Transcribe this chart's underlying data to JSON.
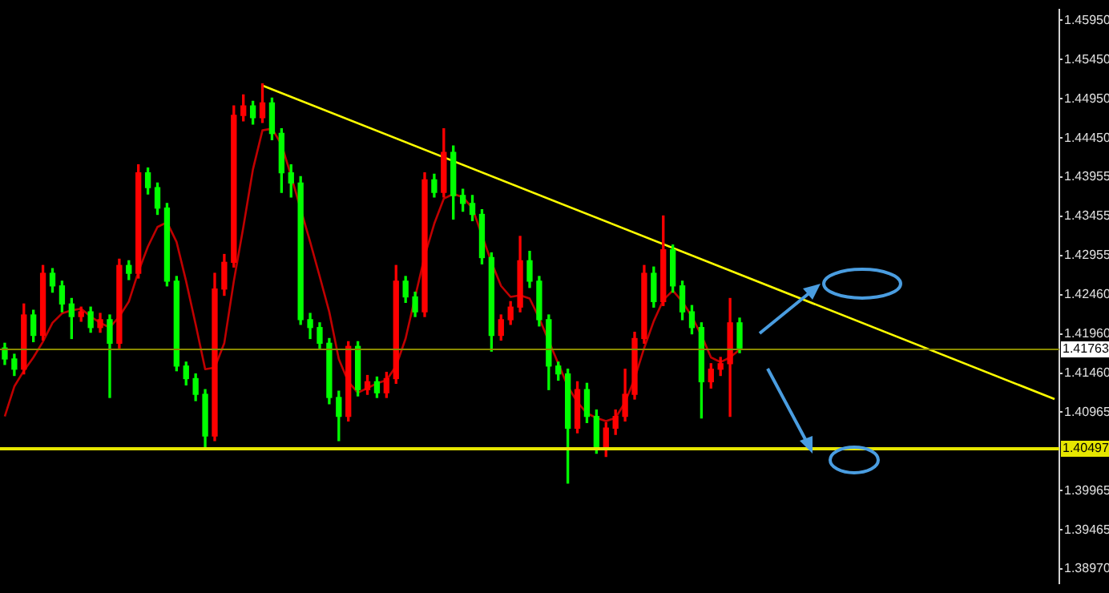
{
  "chart_data": {
    "type": "candlestick",
    "tick_labels": "y",
    "grid": false,
    "legend": false,
    "ylim": [
      1.3878,
      1.4609
    ],
    "yticks": [
      {
        "value": 1.4595,
        "label": "1.45950"
      },
      {
        "value": 1.4545,
        "label": "1.45450"
      },
      {
        "value": 1.4495,
        "label": "1.44950"
      },
      {
        "value": 1.4445,
        "label": "1.44450"
      },
      {
        "value": 1.43955,
        "label": "1.43955"
      },
      {
        "value": 1.43455,
        "label": "1.43455"
      },
      {
        "value": 1.42955,
        "label": "1.42955"
      },
      {
        "value": 1.4246,
        "label": "1.42460"
      },
      {
        "value": 1.4196,
        "label": "1.41960"
      },
      {
        "value": 1.4146,
        "label": "1.41460"
      },
      {
        "value": 1.40965,
        "label": "1.40965"
      },
      {
        "value": 1.39965,
        "label": "1.39965"
      },
      {
        "value": 1.39465,
        "label": "1.39465"
      },
      {
        "value": 1.3897,
        "label": "1.38970"
      }
    ],
    "categories": [
      null,
      null,
      null,
      null,
      null,
      null,
      null,
      null,
      null,
      null,
      null,
      null,
      null,
      null,
      null,
      null,
      null,
      null,
      null,
      null,
      null,
      null,
      null,
      null,
      null,
      null,
      null,
      null,
      null,
      null,
      null,
      null,
      null,
      null,
      null,
      null,
      null,
      null,
      null,
      null,
      null,
      null,
      null,
      null,
      null,
      null,
      null,
      null,
      null,
      null,
      null,
      null,
      null,
      null,
      null,
      null,
      null,
      null,
      null,
      null,
      null,
      null,
      null,
      null,
      null,
      null,
      null,
      null,
      null,
      null,
      null,
      null,
      null,
      null,
      null,
      null,
      null,
      null,
      null,
      null,
      null,
      null,
      null,
      null,
      null,
      null,
      null,
      null,
      null,
      null,
      null,
      null,
      null,
      null,
      null,
      null,
      null,
      null,
      null,
      null,
      null,
      null,
      null,
      null,
      null,
      null,
      null,
      null,
      null,
      null,
      null
    ],
    "ohlc": [
      [
        1.4178,
        1.4184,
        1.4157,
        1.4164
      ],
      [
        1.4164,
        1.417,
        1.4143,
        1.4151
      ],
      [
        1.4151,
        1.4234,
        1.4145,
        1.422
      ],
      [
        1.422,
        1.4226,
        1.4186,
        1.4194
      ],
      [
        1.4194,
        1.4283,
        1.4188,
        1.4273
      ],
      [
        1.4273,
        1.4279,
        1.4249,
        1.4257
      ],
      [
        1.4257,
        1.4263,
        1.4224,
        1.4234
      ],
      [
        1.4234,
        1.4241,
        1.419,
        1.4218
      ],
      [
        1.4218,
        1.423,
        1.4212,
        1.4224
      ],
      [
        1.4224,
        1.423,
        1.4198,
        1.4204
      ],
      [
        1.4204,
        1.4222,
        1.4198,
        1.4214
      ],
      [
        1.4214,
        1.422,
        1.4115,
        1.4184
      ],
      [
        1.4184,
        1.4291,
        1.4178,
        1.4283
      ],
      [
        1.4283,
        1.4289,
        1.4265,
        1.4273
      ],
      [
        1.4273,
        1.4411,
        1.4267,
        1.4401
      ],
      [
        1.4401,
        1.4407,
        1.4374,
        1.4382
      ],
      [
        1.4382,
        1.4388,
        1.4348,
        1.4356
      ],
      [
        1.4356,
        1.4362,
        1.4257,
        1.4263
      ],
      [
        1.4263,
        1.4269,
        1.4149,
        1.4155
      ],
      [
        1.4155,
        1.416,
        1.4131,
        1.4139
      ],
      [
        1.4139,
        1.4145,
        1.4111,
        1.4119
      ],
      [
        1.4119,
        1.4125,
        1.405,
        1.4066
      ],
      [
        1.4066,
        1.4273,
        1.406,
        1.4253
      ],
      [
        1.4253,
        1.4297,
        1.4245,
        1.4287
      ],
      [
        1.4287,
        1.4486,
        1.4281,
        1.4474
      ],
      [
        1.4474,
        1.45,
        1.4467,
        1.4486
      ],
      [
        1.4486,
        1.4492,
        1.4463,
        1.4471
      ],
      [
        1.4471,
        1.4514,
        1.4465,
        1.449
      ],
      [
        1.449,
        1.4496,
        1.4443,
        1.4451
      ],
      [
        1.4451,
        1.4457,
        1.4376,
        1.4401
      ],
      [
        1.4401,
        1.4411,
        1.437,
        1.4388
      ],
      [
        1.4388,
        1.4396,
        1.4208,
        1.4214
      ],
      [
        1.4214,
        1.4222,
        1.419,
        1.4204
      ],
      [
        1.4204,
        1.421,
        1.4176,
        1.4184
      ],
      [
        1.4184,
        1.419,
        1.4107,
        1.4115
      ],
      [
        1.4115,
        1.4123,
        1.406,
        1.4091
      ],
      [
        1.4091,
        1.4186,
        1.4085,
        1.418
      ],
      [
        1.418,
        1.4186,
        1.4117,
        1.4125
      ],
      [
        1.4125,
        1.4143,
        1.4119,
        1.4135
      ],
      [
        1.4135,
        1.4141,
        1.4115,
        1.4121
      ],
      [
        1.4121,
        1.4147,
        1.4115,
        1.4139
      ],
      [
        1.4139,
        1.4283,
        1.4133,
        1.4263
      ],
      [
        1.4263,
        1.4269,
        1.4236,
        1.4243
      ],
      [
        1.4243,
        1.4249,
        1.4218,
        1.4224
      ],
      [
        1.4224,
        1.4401,
        1.4218,
        1.4392
      ],
      [
        1.4392,
        1.4399,
        1.437,
        1.4376
      ],
      [
        1.4376,
        1.4457,
        1.437,
        1.4427
      ],
      [
        1.4427,
        1.4435,
        1.4342,
        1.4372
      ],
      [
        1.4372,
        1.438,
        1.4352,
        1.4362
      ],
      [
        1.4362,
        1.4372,
        1.434,
        1.4348
      ],
      [
        1.4348,
        1.4354,
        1.4285,
        1.4293
      ],
      [
        1.4293,
        1.4299,
        1.4174,
        1.4194
      ],
      [
        1.4194,
        1.422,
        1.4188,
        1.4214
      ],
      [
        1.4214,
        1.4237,
        1.4208,
        1.423
      ],
      [
        1.423,
        1.432,
        1.4224,
        1.4289
      ],
      [
        1.4289,
        1.4301,
        1.4255,
        1.4263
      ],
      [
        1.4263,
        1.4269,
        1.4206,
        1.4214
      ],
      [
        1.4214,
        1.422,
        1.4125,
        1.4155
      ],
      [
        1.4155,
        1.416,
        1.4137,
        1.4145
      ],
      [
        1.4145,
        1.4151,
        1.4006,
        1.4076
      ],
      [
        1.4076,
        1.4135,
        1.407,
        1.4125
      ],
      [
        1.4125,
        1.4133,
        1.4083,
        1.4091
      ],
      [
        1.4091,
        1.4099,
        1.4044,
        1.405
      ],
      [
        1.405,
        1.4083,
        1.404,
        1.4076
      ],
      [
        1.4076,
        1.4099,
        1.4068,
        1.4091
      ],
      [
        1.4091,
        1.4151,
        1.4085,
        1.4119
      ],
      [
        1.4119,
        1.4198,
        1.4113,
        1.419
      ],
      [
        1.419,
        1.4283,
        1.4184,
        1.4273
      ],
      [
        1.4273,
        1.4281,
        1.423,
        1.4237
      ],
      [
        1.4237,
        1.4346,
        1.4232,
        1.4303
      ],
      [
        1.4303,
        1.4309,
        1.4249,
        1.4257
      ],
      [
        1.4257,
        1.4263,
        1.4214,
        1.4224
      ],
      [
        1.4224,
        1.4232,
        1.4196,
        1.4204
      ],
      [
        1.4204,
        1.421,
        1.4089,
        1.4135
      ],
      [
        1.4135,
        1.4158,
        1.4127,
        1.4151
      ],
      [
        1.4151,
        1.4166,
        1.4143,
        1.4158
      ],
      [
        1.4158,
        1.4241,
        1.4091,
        1.421
      ],
      [
        1.421,
        1.4216,
        1.4172,
        1.4178
      ],
      null,
      null,
      null,
      null,
      null,
      null,
      null,
      null,
      null,
      null,
      null,
      null,
      null,
      null,
      null,
      null,
      null,
      null,
      null,
      null,
      null,
      null,
      null,
      null,
      null,
      null,
      null,
      null,
      null,
      null,
      null,
      null,
      null
    ],
    "colors": [
      "#00ff00",
      "#00ff00",
      "#ff0000",
      "#00ff00",
      "#ff0000",
      "#00ff00",
      "#00ff00",
      "#00ff00",
      "#ff0000",
      "#00ff00",
      "#ff0000",
      "#00ff00",
      "#ff0000",
      "#00ff00",
      "#ff0000",
      "#00ff00",
      "#00ff00",
      "#00ff00",
      "#00ff00",
      "#00ff00",
      "#00ff00",
      "#00ff00",
      "#ff0000",
      "#ff0000",
      "#ff0000",
      "#ff0000",
      "#00ff00",
      "#ff0000",
      "#00ff00",
      "#00ff00",
      "#00ff00",
      "#00ff00",
      "#00ff00",
      "#00ff00",
      "#00ff00",
      "#00ff00",
      "#ff0000",
      "#00ff00",
      "#ff0000",
      "#00ff00",
      "#ff0000",
      "#ff0000",
      "#00ff00",
      "#00ff00",
      "#ff0000",
      "#00ff00",
      "#ff0000",
      "#00ff00",
      "#00ff00",
      "#00ff00",
      "#00ff00",
      "#00ff00",
      "#ff0000",
      "#ff0000",
      "#ff0000",
      "#00ff00",
      "#00ff00",
      "#00ff00",
      "#00ff00",
      "#00ff00",
      "#ff0000",
      "#00ff00",
      "#00ff00",
      "#ff0000",
      "#ff0000",
      "#ff0000",
      "#ff0000",
      "#ff0000",
      "#00ff00",
      "#ff0000",
      "#00ff00",
      "#00ff00",
      "#00ff00",
      "#00ff00",
      "#ff0000",
      "#ff0000",
      "#ff0000",
      "#00ff00",
      null,
      null,
      null,
      null,
      null,
      null,
      null,
      null,
      null,
      null,
      null,
      null,
      null,
      null,
      null,
      null,
      null,
      null,
      null,
      null,
      null,
      null,
      null,
      null,
      null,
      null,
      null,
      null,
      null,
      null,
      null,
      null,
      null
    ],
    "series": [
      {
        "type": "line",
        "color": "#c00000",
        "marker": "none",
        "line_style": "solid",
        "values": [
          1.4091,
          1.4129,
          1.4149,
          1.4166,
          1.4186,
          1.421,
          1.4222,
          1.4226,
          1.4228,
          1.4218,
          1.421,
          1.4204,
          1.4218,
          1.4237,
          1.4275,
          1.4307,
          1.4332,
          1.4338,
          1.4313,
          1.4263,
          1.4208,
          1.4151,
          1.4153,
          1.4184,
          1.4263,
          1.4332,
          1.4405,
          1.4455,
          1.4457,
          1.4437,
          1.4397,
          null,
          1.4313,
          1.4269,
          1.4224,
          1.4164,
          1.4135,
          1.4121,
          1.4127,
          1.4133,
          1.4137,
          1.4155,
          1.419,
          1.4243,
          1.4295,
          1.4336,
          1.4368,
          1.4374,
          1.437,
          1.4356,
          null,
          1.4287,
          1.4257,
          1.4243,
          1.4245,
          1.4241,
          1.4216,
          null,
          1.4158,
          1.4129,
          1.4109,
          1.4095,
          1.4089,
          1.4085,
          1.4089,
          1.4109,
          1.4139,
          1.4178,
          1.4212,
          1.4239,
          1.4251,
          1.4237,
          1.4218,
          1.4194,
          1.4166,
          1.416,
          1.4166,
          1.4176,
          null,
          null,
          null,
          null,
          null,
          null,
          null,
          null,
          null,
          null,
          null,
          null,
          null,
          null,
          null,
          null,
          null,
          null,
          null,
          null,
          null,
          null,
          null,
          null,
          null,
          null,
          null,
          null,
          null,
          null,
          null,
          null,
          null
        ]
      },
      {
        "type": "line",
        "color": "#ffff00",
        "marker": "none",
        "line_style": "solid",
        "values": [
          null,
          null,
          null,
          null,
          null,
          null,
          null,
          null,
          null,
          null,
          null,
          null,
          null,
          null,
          null,
          null,
          null,
          null,
          null,
          null,
          null,
          null,
          null,
          null,
          null,
          null,
          null,
          1.4512,
          null,
          null,
          null,
          null,
          null,
          null,
          null,
          null,
          null,
          null,
          null,
          null,
          null,
          null,
          null,
          null,
          null,
          null,
          null,
          null,
          null,
          null,
          null,
          null,
          null,
          null,
          null,
          null,
          null,
          null,
          null,
          null,
          null,
          null,
          null,
          null,
          null,
          null,
          null,
          null,
          null,
          null,
          null,
          null,
          null,
          null,
          null,
          null,
          null,
          null,
          null,
          null,
          null,
          null,
          null,
          null,
          null,
          null,
          null,
          null,
          null,
          null,
          null,
          null,
          null,
          null,
          null,
          null,
          null,
          null,
          null,
          null,
          null,
          null,
          null,
          null,
          null,
          null,
          null,
          null,
          null,
          null,
          1.4113
        ]
      }
    ],
    "ref_lines": [
      {
        "axis": "y",
        "value": 1.41763,
        "label": "1.41763",
        "color": "#8a8a00"
      },
      {
        "axis": "y",
        "value": 1.40497,
        "label": "1.40497",
        "color": "#e6e600"
      }
    ]
  }
}
